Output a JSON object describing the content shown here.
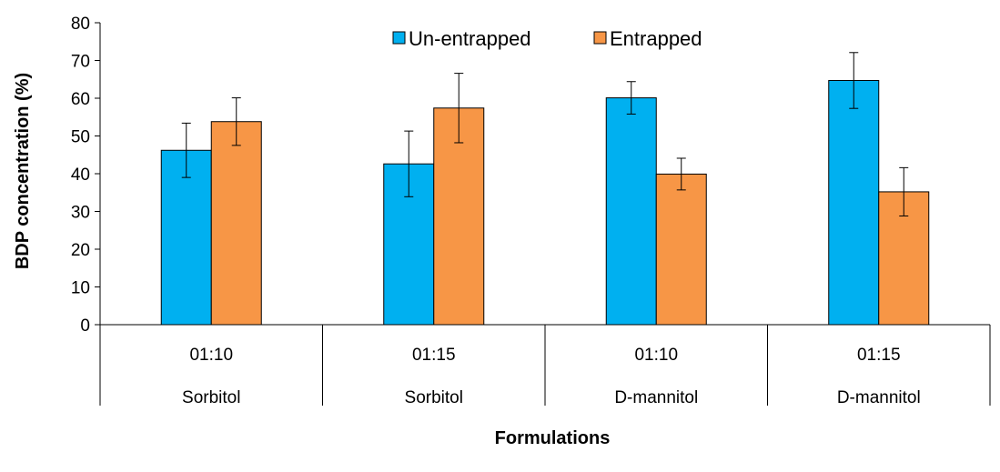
{
  "chart_data": {
    "type": "bar",
    "title": "",
    "xlabel": "Formulations",
    "ylabel": "BDP concentration (%)",
    "ylim": [
      0,
      80
    ],
    "yticks": [
      0,
      10,
      20,
      30,
      40,
      50,
      60,
      70,
      80
    ],
    "grid": false,
    "legend_position": "top",
    "categories": [
      {
        "ratio": "01:10",
        "group": "Sorbitol"
      },
      {
        "ratio": "01:15",
        "group": "Sorbitol"
      },
      {
        "ratio": "01:10",
        "group": "D-mannitol"
      },
      {
        "ratio": "01:15",
        "group": "D-mannitol"
      }
    ],
    "series": [
      {
        "name": "Un-entrapped",
        "color": "#00b0f0",
        "values": [
          46.2,
          42.6,
          60.1,
          64.7
        ],
        "errors": [
          7.2,
          8.7,
          4.3,
          7.4
        ]
      },
      {
        "name": "Entrapped",
        "color": "#f79646",
        "values": [
          53.8,
          57.4,
          39.9,
          35.2
        ],
        "errors": [
          6.3,
          9.2,
          4.2,
          6.4
        ]
      }
    ]
  }
}
